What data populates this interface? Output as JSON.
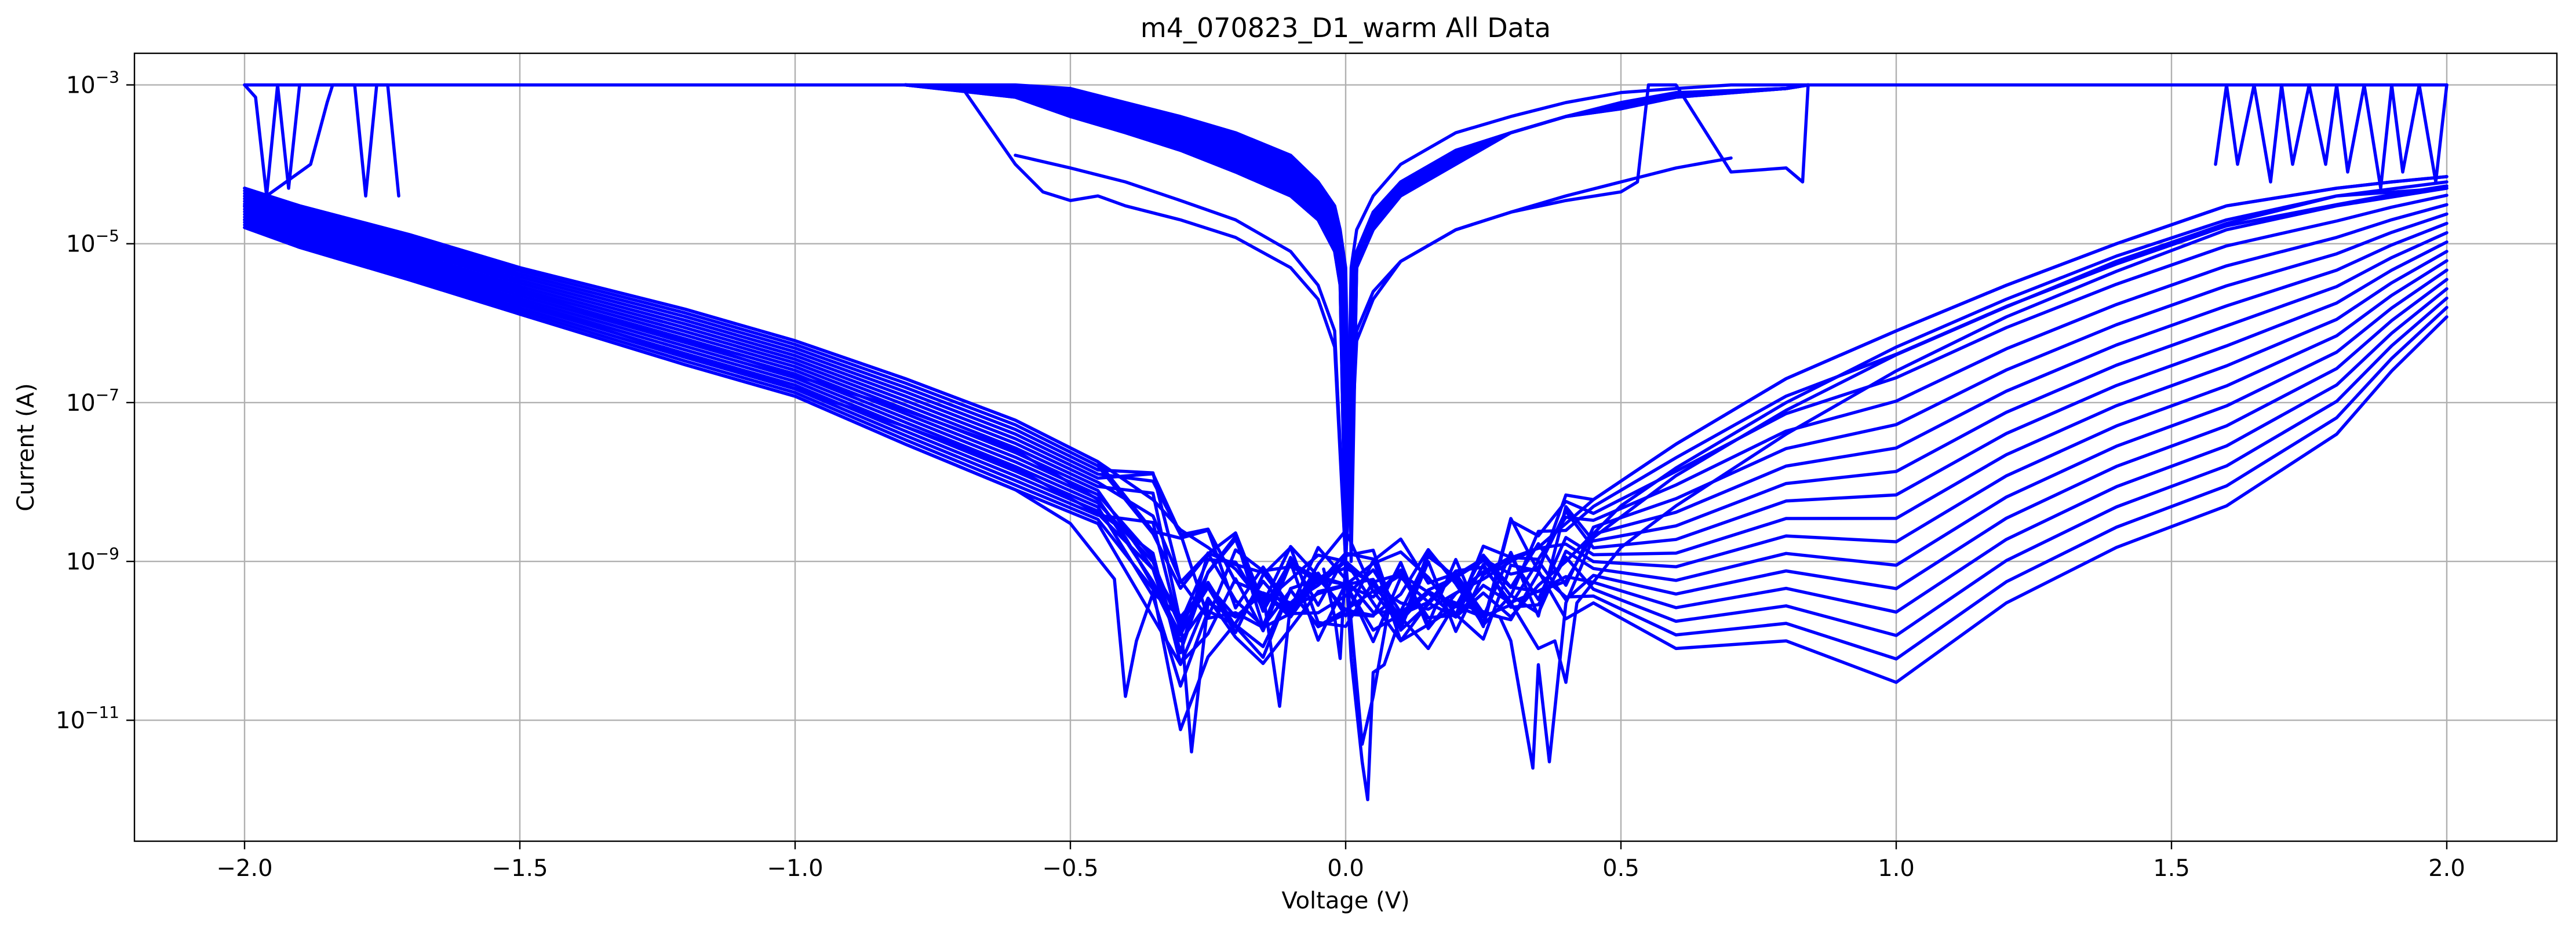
{
  "chart_data": {
    "type": "line",
    "title": "m4_070823_D1_warm All Data",
    "xlabel": "Voltage (V)",
    "ylabel": "Current (A)",
    "xlim": [
      -2.2,
      2.2
    ],
    "ylim": [
      3e-13,
      0.0025
    ],
    "yscale": "log",
    "grid": true,
    "line_color": "#0000ff",
    "x_ticks": [
      {
        "value": -2.0,
        "label": "−2.0"
      },
      {
        "value": -1.5,
        "label": "−1.5"
      },
      {
        "value": -1.0,
        "label": "−1.0"
      },
      {
        "value": -0.5,
        "label": "−0.5"
      },
      {
        "value": 0.0,
        "label": "0.0"
      },
      {
        "value": 0.5,
        "label": "0.5"
      },
      {
        "value": 1.0,
        "label": "1.0"
      },
      {
        "value": 1.5,
        "label": "1.5"
      },
      {
        "value": 2.0,
        "label": "2.0"
      }
    ],
    "y_ticks": [
      {
        "value": 0.001,
        "base": "10",
        "exp": "−3"
      },
      {
        "value": 1e-05,
        "base": "10",
        "exp": "−5"
      },
      {
        "value": 1e-07,
        "base": "10",
        "exp": "−7"
      },
      {
        "value": 1e-09,
        "base": "10",
        "exp": "−9"
      },
      {
        "value": 1e-11,
        "base": "10",
        "exp": "−11"
      }
    ],
    "series": [
      {
        "x": [
          -2.0,
          -1.9,
          -1.7,
          -1.5,
          -1.2,
          -1.0,
          -0.8,
          -0.6,
          -0.45,
          -0.35,
          -0.3,
          -0.25,
          -0.2,
          -0.15,
          -0.1,
          -0.05,
          0.0,
          0.05,
          0.1,
          0.15,
          0.2,
          0.25,
          0.3,
          0.35,
          0.4,
          0.45,
          0.6,
          0.8,
          1.0,
          1.2,
          1.4,
          1.6,
          1.8,
          1.9,
          2.0
        ],
        "y": [
          5e-05,
          3e-05,
          1.3e-05,
          5e-06,
          1.5e-06,
          6e-07,
          2e-07,
          6e-08,
          1.8e-08,
          6e-09,
          2.5e-09,
          1.5e-09,
          8e-10,
          3e-10,
          6e-10,
          1.2e-09,
          1e-09,
          5e-10,
          3e-10,
          2.5e-10,
          4e-10,
          6e-10,
          1e-09,
          1.5e-09,
          3e-09,
          6e-09,
          3e-08,
          2e-07,
          8e-07,
          3e-06,
          1e-05,
          3e-05,
          5e-05,
          6e-05,
          7e-05
        ]
      },
      {
        "x": [
          -2.0,
          -1.9,
          -1.7,
          -1.5,
          -1.2,
          -1.0,
          -0.8,
          -0.6,
          -0.45,
          -0.4,
          -0.35,
          -0.3,
          -0.25,
          -0.2,
          -0.15,
          -0.1,
          -0.05,
          0.0,
          0.05,
          0.1,
          0.15,
          0.2,
          0.25,
          0.3,
          0.35,
          0.4,
          0.5,
          0.6,
          0.8,
          1.0,
          1.2,
          1.4,
          1.6,
          1.8,
          2.0
        ],
        "y": [
          3e-05,
          1.8e-05,
          7e-06,
          2.5e-06,
          6e-07,
          2.2e-07,
          8e-08,
          2.5e-08,
          6e-09,
          2e-09,
          5e-10,
          1e-10,
          3e-10,
          2e-10,
          4e-10,
          2e-10,
          6e-10,
          1e-09,
          3e-10,
          1e-10,
          3e-10,
          2e-10,
          4e-10,
          2e-10,
          5e-10,
          1e-09,
          5e-09,
          1.5e-08,
          1e-07,
          5e-07,
          2e-06,
          7e-06,
          2e-05,
          4e-05,
          6e-05
        ]
      },
      {
        "x": [
          -2.0,
          -1.9,
          -1.7,
          -1.5,
          -1.2,
          -1.0,
          -0.8,
          -0.6,
          -0.5,
          -0.42,
          -0.4,
          -0.38,
          -0.35,
          -0.3,
          -0.25,
          -0.2,
          -0.15,
          -0.1,
          -0.05,
          0.0,
          0.05,
          0.1,
          0.15,
          0.2,
          0.25,
          0.3,
          0.35,
          0.38,
          0.4,
          0.42,
          0.5,
          0.6,
          0.8,
          1.0,
          1.2,
          1.4,
          1.6,
          1.8,
          2.0
        ],
        "y": [
          1.6e-05,
          9e-06,
          3.5e-06,
          1.3e-06,
          3e-07,
          1.2e-07,
          3e-08,
          8e-09,
          3e-09,
          6e-10,
          2e-11,
          1e-10,
          4e-10,
          2e-10,
          5e-10,
          2e-10,
          4e-10,
          3e-10,
          6e-10,
          1e-09,
          5e-10,
          2e-10,
          4e-10,
          2e-10,
          5e-10,
          3e-10,
          8e-11,
          1e-10,
          3e-11,
          3e-10,
          1.5e-09,
          5e-09,
          4e-08,
          2.5e-07,
          1.2e-06,
          4.5e-06,
          1.5e-05,
          3e-05,
          5e-05
        ]
      },
      {
        "x": [
          -2.0,
          -1.9,
          -1.7,
          -1.5,
          -1.2,
          -1.0,
          -0.8,
          -0.6,
          -0.45,
          -0.35,
          -0.3,
          -0.28,
          -0.25,
          -0.2,
          -0.15,
          -0.12,
          -0.1,
          -0.05,
          0.0,
          0.03,
          0.05,
          0.08,
          0.1,
          0.15,
          0.2,
          0.28,
          0.3,
          0.34,
          0.35,
          0.37,
          0.4,
          0.45,
          0.6,
          0.8,
          1.0,
          1.2,
          1.4,
          1.6,
          1.8,
          2.0
        ],
        "y": [
          2e-05,
          1.2e-05,
          5e-06,
          1.8e-06,
          4e-07,
          1.5e-07,
          5e-08,
          1.5e-08,
          4e-09,
          8e-10,
          2e-10,
          4e-12,
          3e-10,
          2e-10,
          4e-10,
          1.5e-11,
          3e-10,
          5e-10,
          1e-09,
          5e-12,
          2e-11,
          3e-10,
          2e-10,
          4e-10,
          3e-10,
          2e-10,
          1e-10,
          2.5e-12,
          5e-11,
          3e-12,
          3e-10,
          2e-09,
          1.2e-08,
          8e-08,
          4e-07,
          1.6e-06,
          6e-06,
          1.8e-05,
          4e-05,
          5e-05
        ]
      },
      {
        "x": [
          -0.04,
          -0.02,
          -0.01,
          0.0,
          0.01,
          0.03,
          0.04,
          0.05,
          0.07,
          0.1,
          0.15,
          0.2
        ],
        "y": [
          8e-10,
          2e-10,
          6e-11,
          1e-09,
          6e-11,
          3e-12,
          1e-12,
          4e-11,
          5e-11,
          2e-10,
          8e-11,
          3e-10
        ]
      },
      {
        "x": [
          -2.0,
          -1.98,
          -1.96,
          -1.94,
          -1.92,
          -1.9,
          -1.8,
          -1.78,
          -1.76
        ],
        "y": [
          0.001,
          0.0007,
          4e-05,
          0.001,
          5e-05,
          0.001,
          0.001,
          4e-05,
          0.001
        ]
      },
      {
        "x": [
          -1.96,
          -1.88,
          -1.85,
          -1.84,
          -1.83,
          -1.74,
          -1.72
        ],
        "y": [
          4e-05,
          0.0001,
          0.0006,
          0.001,
          0.001,
          0.001,
          4e-05
        ]
      },
      {
        "x": [
          1.58,
          1.6,
          1.62,
          1.65,
          1.68,
          1.7,
          1.72,
          1.75,
          1.78,
          1.8,
          1.82,
          1.85,
          1.88,
          1.9,
          1.92,
          1.95,
          1.98,
          2.0
        ],
        "y": [
          0.0001,
          0.001,
          0.0001,
          0.001,
          6e-05,
          0.001,
          0.0001,
          0.001,
          0.0001,
          0.001,
          8e-05,
          0.001,
          5e-05,
          0.001,
          8e-05,
          0.001,
          6e-05,
          0.001
        ]
      },
      {
        "x": [
          -2.0,
          -1.5,
          -1.0,
          -0.8,
          -0.6,
          -0.5,
          -0.4,
          -0.3,
          -0.2,
          -0.1,
          -0.05,
          -0.02,
          -0.01,
          0.0,
          0.01,
          0.02,
          0.05,
          0.1,
          0.2,
          0.3,
          0.4,
          0.5,
          0.6,
          0.7,
          0.8,
          0.84,
          1.0,
          1.5,
          2.0
        ],
        "y": [
          0.001,
          0.001,
          0.001,
          0.001,
          0.0009,
          0.0006,
          0.0004,
          0.00025,
          0.00013,
          6e-05,
          3e-05,
          1.5e-05,
          5e-06,
          1e-09,
          5e-06,
          1.5e-05,
          4e-05,
          0.0001,
          0.00025,
          0.0004,
          0.0006,
          0.0008,
          0.0009,
          0.001,
          0.001,
          0.001,
          0.001,
          0.001,
          0.001
        ]
      },
      {
        "x": [
          -0.8,
          -0.6,
          -0.5,
          -0.4,
          -0.3,
          -0.2,
          -0.1,
          -0.05,
          -0.02,
          -0.01,
          0.0,
          0.01,
          0.02,
          0.05,
          0.1,
          0.2,
          0.3,
          0.4,
          0.5,
          0.6,
          0.8,
          0.84
        ],
        "y": [
          0.001,
          0.0007,
          0.0004,
          0.00025,
          0.00015,
          8e-05,
          4e-05,
          2e-05,
          8e-06,
          3e-06,
          1e-09,
          3e-06,
          8e-06,
          2.5e-05,
          6e-05,
          0.00015,
          0.00025,
          0.0004,
          0.0005,
          0.0007,
          0.0009,
          0.001
        ]
      },
      {
        "x": [
          -0.7,
          -0.6,
          -0.55,
          -0.5,
          -0.45,
          -0.4,
          -0.3,
          -0.2,
          -0.1,
          -0.05,
          -0.02,
          0.0,
          0.02,
          0.05,
          0.1,
          0.2,
          0.3,
          0.4,
          0.5,
          0.53,
          0.55,
          0.6,
          0.7,
          0.8,
          0.83,
          0.84
        ],
        "y": [
          0.001,
          0.0001,
          4.5e-05,
          3.5e-05,
          4e-05,
          3e-05,
          2e-05,
          1.2e-05,
          5e-06,
          2e-06,
          5e-07,
          1e-09,
          6e-07,
          2e-06,
          6e-06,
          1.5e-05,
          2.5e-05,
          3.5e-05,
          4.5e-05,
          6e-05,
          0.001,
          0.001,
          8e-05,
          9e-05,
          6e-05,
          0.001
        ]
      },
      {
        "x": [
          -0.6,
          -0.5,
          -0.4,
          -0.3,
          -0.2,
          -0.1,
          -0.05,
          -0.02,
          0.0,
          0.02,
          0.05,
          0.1,
          0.2,
          0.3,
          0.4,
          0.5,
          0.6,
          0.7
        ],
        "y": [
          0.00013,
          9e-05,
          6e-05,
          3.5e-05,
          2e-05,
          8e-06,
          3e-06,
          8e-07,
          1e-09,
          8e-07,
          2.5e-06,
          6e-06,
          1.5e-05,
          2.5e-05,
          4e-05,
          6e-05,
          9e-05,
          0.00012
        ]
      }
    ]
  }
}
